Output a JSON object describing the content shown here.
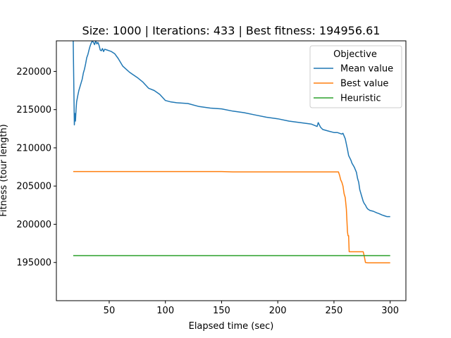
{
  "chart_data": {
    "type": "line",
    "title": "Size: 1000 | Iterations: 433 | Best fitness: 194956.61",
    "xlabel": "Elapsed time (sec)",
    "ylabel": "Fitness (tour length)",
    "xlim": [
      3,
      314
    ],
    "ylim": [
      190000,
      224000
    ],
    "xticks": [
      50,
      100,
      150,
      200,
      250,
      300
    ],
    "yticks": [
      195000,
      200000,
      205000,
      210000,
      215000,
      220000
    ],
    "grid": false,
    "legend": {
      "title": "Objective",
      "position": "top-right"
    },
    "series": [
      {
        "name": "Mean value",
        "color": "#1f77b4",
        "x": [
          18,
          19,
          19.5,
          20,
          20.5,
          21,
          22,
          23,
          24,
          25,
          26,
          27,
          28,
          29,
          30,
          31,
          32,
          33,
          34,
          35,
          36,
          37,
          38,
          39,
          40,
          41,
          42,
          43,
          44,
          45,
          46,
          48,
          50,
          52,
          55,
          58,
          60,
          62,
          65,
          68,
          70,
          75,
          80,
          85,
          90,
          95,
          100,
          105,
          110,
          120,
          130,
          140,
          150,
          160,
          170,
          180,
          190,
          200,
          210,
          220,
          230,
          235,
          236,
          238,
          240,
          245,
          250,
          253,
          255,
          257,
          258,
          260,
          261,
          262,
          263,
          265,
          266,
          268,
          270,
          271,
          272,
          273,
          275,
          276,
          277,
          278,
          279,
          280,
          282,
          285,
          288,
          290,
          293,
          295,
          297,
          299,
          300
        ],
        "y": [
          224000,
          213000,
          214500,
          213500,
          215000,
          216000,
          216800,
          217500,
          218000,
          218500,
          219000,
          219800,
          220300,
          221000,
          221800,
          222200,
          222800,
          223300,
          223700,
          224000,
          223800,
          223500,
          224000,
          223600,
          223800,
          223400,
          222800,
          222700,
          223000,
          222600,
          222900,
          222800,
          222700,
          222600,
          222300,
          221700,
          221200,
          220700,
          220300,
          219900,
          219700,
          219200,
          218600,
          217800,
          217500,
          217000,
          216200,
          216000,
          215900,
          215800,
          215400,
          215200,
          215100,
          214800,
          214600,
          214300,
          214000,
          213800,
          213500,
          213300,
          213100,
          212800,
          213300,
          212700,
          212400,
          212200,
          212000,
          212000,
          211900,
          211800,
          211900,
          211200,
          210500,
          209800,
          209000,
          208400,
          208000,
          207500,
          206800,
          206000,
          205500,
          204500,
          203500,
          203000,
          202700,
          202500,
          202200,
          202000,
          201800,
          201700,
          201500,
          201400,
          201200,
          201100,
          201000,
          201000,
          201000
        ]
      },
      {
        "name": "Best value",
        "color": "#ff7f0e",
        "x": [
          18,
          50,
          100,
          150,
          160,
          200,
          250,
          254,
          255,
          256,
          257,
          258,
          259,
          260,
          261,
          262,
          262.5,
          263,
          263.5,
          264,
          270,
          276,
          277,
          278,
          280,
          290,
          300
        ],
        "y": [
          206900,
          206900,
          206900,
          206900,
          206850,
          206850,
          206850,
          206850,
          206400,
          205800,
          205500,
          205000,
          204000,
          203500,
          202000,
          199000,
          198500,
          198500,
          196400,
          196400,
          196400,
          196400,
          195800,
          195000,
          194960,
          194960,
          194960
        ]
      },
      {
        "name": "Heuristic",
        "color": "#2ca02c",
        "x": [
          18,
          300
        ],
        "y": [
          195900,
          195900
        ]
      }
    ]
  }
}
